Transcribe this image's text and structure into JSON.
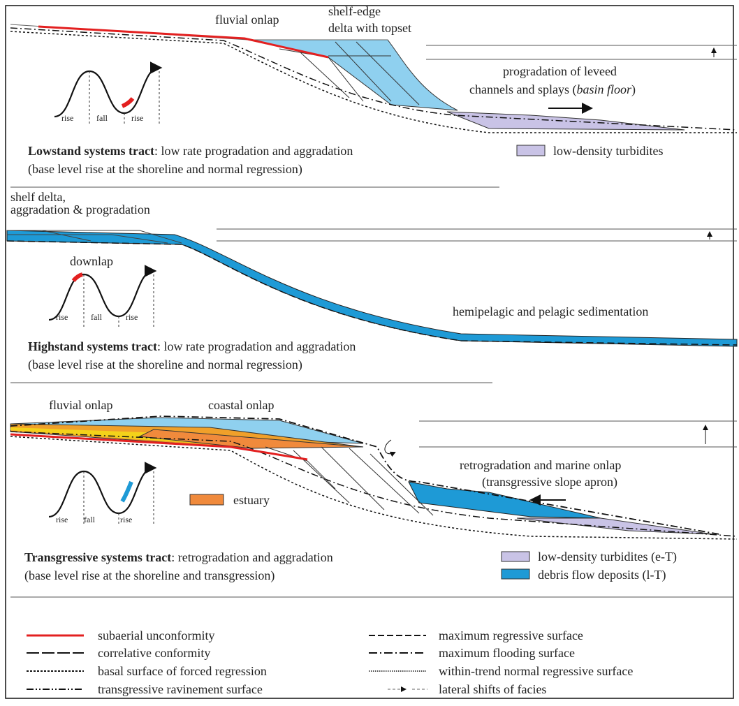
{
  "panels": [
    {
      "annotations": [
        "fluvial onlap",
        "shelf-edge",
        "delta with topset",
        "progradation of leveed",
        "channels and splays (",
        "basin floor",
        ")"
      ],
      "curve": [
        "rise",
        "fall",
        "rise"
      ],
      "title": "Lowstand systems tract",
      "description": ": low rate progradation and aggradation",
      "note": "(base level rise at the shoreline and normal regression)",
      "key": [
        "low-density turbidites"
      ]
    },
    {
      "annotations": [
        "shelf delta,",
        "aggradation & progradation",
        "downlap",
        "hemipelagic and pelagic sedimentation"
      ],
      "curve": [
        "rise",
        "fall",
        "rise"
      ],
      "title": "Highstand systems tract",
      "description": ": low rate progradation and aggradation",
      "note": "(base level rise at the shoreline and normal regression)"
    },
    {
      "annotations": [
        "fluvial onlap",
        "coastal onlap",
        "retrogradation and marine onlap",
        "(transgressive slope apron)",
        "estuary"
      ],
      "curve": [
        "rise",
        "fall",
        "rise"
      ],
      "title": "Transgressive systems tract",
      "description": ": retrogradation and aggradation",
      "note": "(base level rise at the shoreline and transgression)",
      "key": [
        "low-density turbidites (e-T)",
        "debris flow deposits (l-T)"
      ]
    }
  ],
  "legend": [
    "subaerial unconformity",
    "correlative conformity",
    "basal surface of forced regression",
    "transgressive ravinement surface",
    "maximum regressive surface",
    "maximum flooding surface",
    "within-trend normal regressive surface",
    "lateral shifts of facies"
  ]
}
